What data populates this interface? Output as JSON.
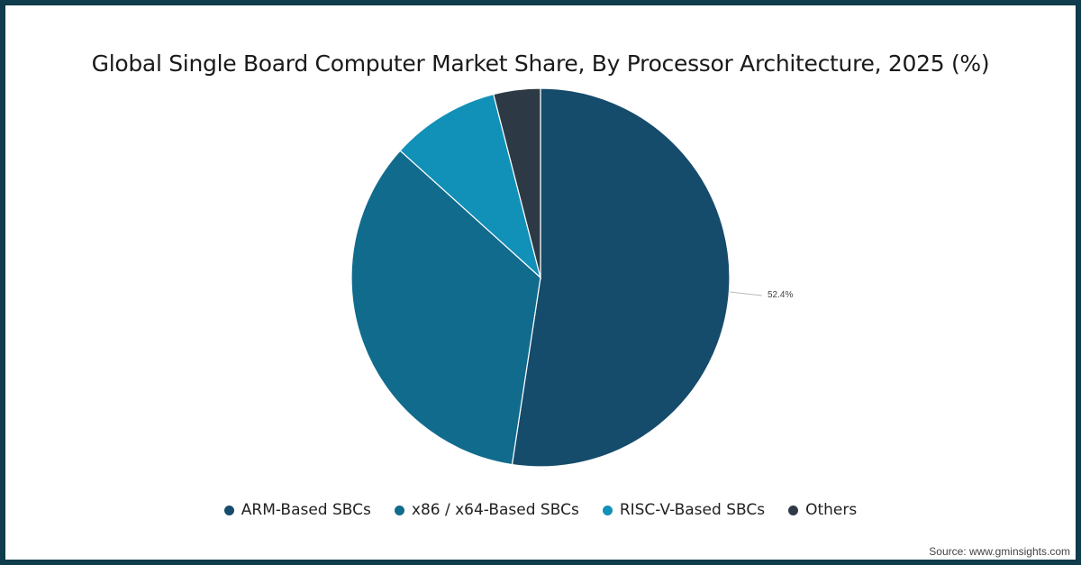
{
  "chart_data": {
    "type": "pie",
    "title": "Global Single Board Computer Market Share, By Processor Architecture, 2025 (%)",
    "categories": [
      "ARM-Based SBCs",
      "x86 / x64-Based SBCs",
      "RISC-V-Based SBCs",
      "Others"
    ],
    "values": [
      52.4,
      34.3,
      9.3,
      4.0
    ],
    "colors": [
      "#154b6b",
      "#116b8c",
      "#1190b8",
      "#2d3a45"
    ],
    "data_labels": [
      {
        "category": "ARM-Based SBCs",
        "text": "52.4%"
      }
    ],
    "legend_position": "bottom"
  },
  "title": "Global Single Board Computer Market Share, By Processor Architecture, 2025 (%)",
  "legend": [
    {
      "label": "ARM-Based SBCs",
      "color": "#154b6b"
    },
    {
      "label": "x86 / x64-Based SBCs",
      "color": "#116b8c"
    },
    {
      "label": "RISC-V-Based SBCs",
      "color": "#1190b8"
    },
    {
      "label": "Others",
      "color": "#2d3a45"
    }
  ],
  "data_label": "52.4%",
  "source": "Source: www.gminsights.com"
}
